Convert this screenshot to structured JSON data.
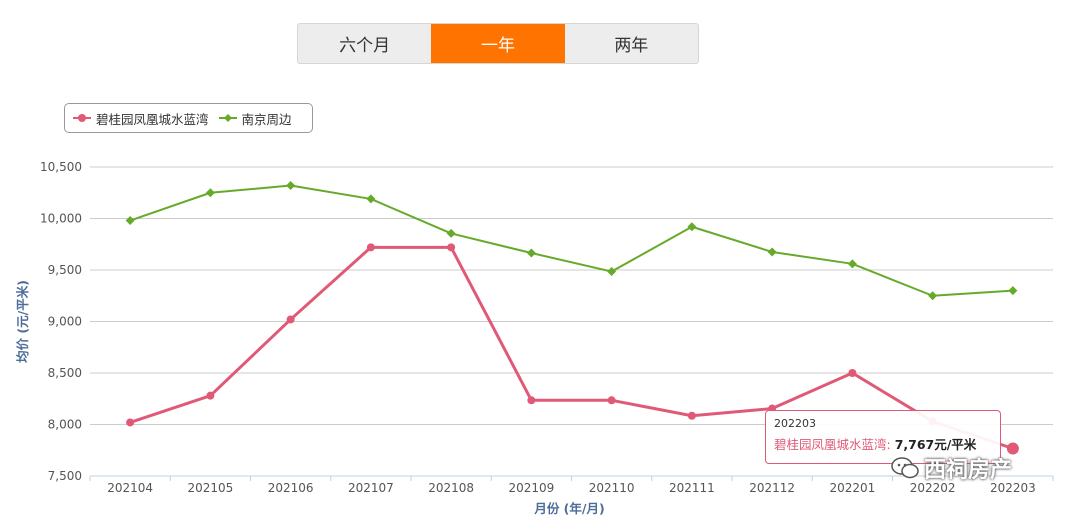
{
  "range_tabs": [
    {
      "label": "六个月",
      "active": false
    },
    {
      "label": "一年",
      "active": true
    },
    {
      "label": "两年",
      "active": false
    }
  ],
  "colors": {
    "accent": "#ff7300",
    "series1": "#e05a78",
    "series2": "#66aa2a"
  },
  "chart_data": {
    "type": "line",
    "title": "",
    "xlabel": "月份 (年/月)",
    "ylabel": "均价 (元/平米)",
    "categories": [
      "202104",
      "202105",
      "202106",
      "202107",
      "202108",
      "202109",
      "202110",
      "202111",
      "202112",
      "202201",
      "202202",
      "202203"
    ],
    "ylim": [
      7500,
      10500
    ],
    "yticks": [
      7500,
      8000,
      8500,
      9000,
      9500,
      10000,
      10500
    ],
    "ytick_labels": [
      "7,500",
      "8,000",
      "8,500",
      "9,000",
      "9,500",
      "10,000",
      "10,500"
    ],
    "grid": true,
    "legend_position": "top-left",
    "series": [
      {
        "name": "碧桂园凤凰城水蓝湾",
        "marker": "circle",
        "values": [
          8020,
          8280,
          9020,
          9720,
          9720,
          8235,
          8235,
          8085,
          8155,
          8500,
          8030,
          7767
        ]
      },
      {
        "name": "南京周边",
        "marker": "diamond",
        "values": [
          9980,
          10250,
          10320,
          10190,
          9855,
          9665,
          9485,
          9920,
          9675,
          9560,
          9250,
          9300
        ]
      }
    ]
  },
  "tooltip": {
    "category": "202203",
    "series": "碧桂园凤凰城水蓝湾: ",
    "value": "7,767元/平米"
  },
  "watermark": {
    "text": "西祠房产",
    "icon": "wechat-icon"
  }
}
